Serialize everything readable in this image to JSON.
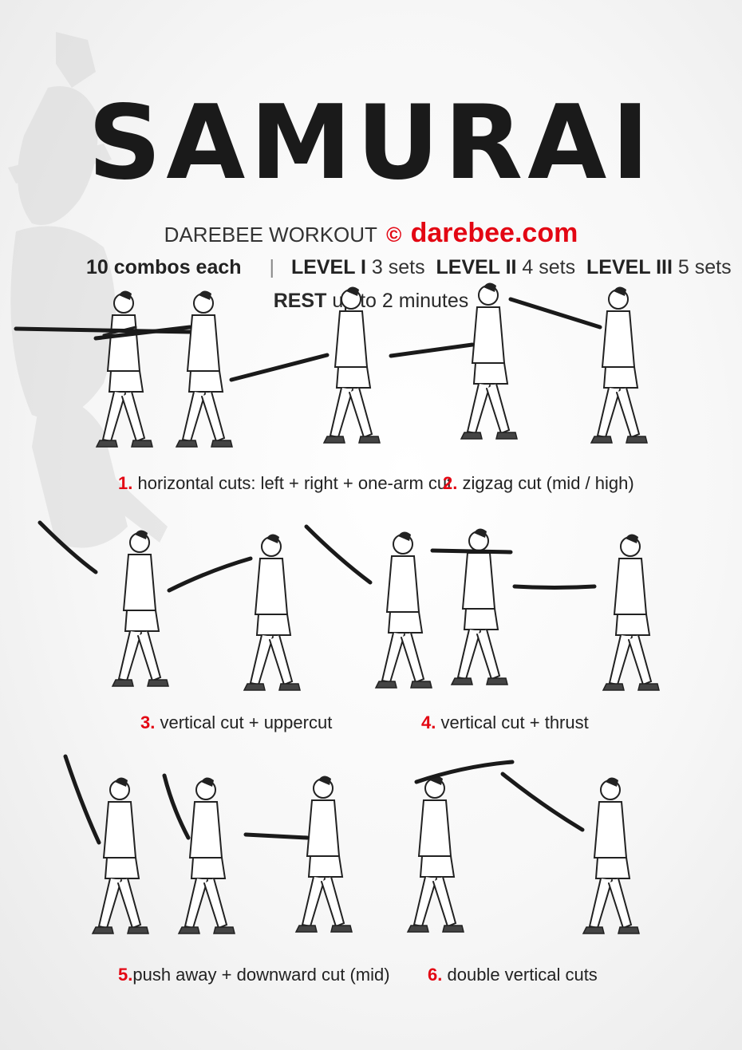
{
  "title": "SAMURAI",
  "brand": {
    "prefix": "DAREBEE WORKOUT",
    "copyright_symbol": "©",
    "site": "darebee.com",
    "accent_color": "#e30613"
  },
  "levels": {
    "reps": "10 combos each",
    "separator": "|",
    "level1_label": "LEVEL I",
    "level1_sets": "3 sets",
    "level2_label": "LEVEL II",
    "level2_sets": "4 sets",
    "level3_label": "LEVEL III",
    "level3_sets": "5 sets"
  },
  "rest": {
    "label": "REST",
    "value": "up to 2 minutes"
  },
  "exercises": [
    {
      "num": "1.",
      "name": "horizontal cuts:  left  +  right  +  one-arm cut"
    },
    {
      "num": "2.",
      "name": "zigzag cut  (mid / high)"
    },
    {
      "num": "3.",
      "name": "vertical cut + uppercut"
    },
    {
      "num": "4.",
      "name": "vertical cut  +  thrust"
    },
    {
      "num": "5.",
      "name": "push away + downward cut (mid)"
    },
    {
      "num": "6.",
      "name": "double vertical cuts"
    }
  ],
  "icons": {
    "background": "samurai-silhouette-icon",
    "figure": "stick-fighter-figure-icon"
  }
}
